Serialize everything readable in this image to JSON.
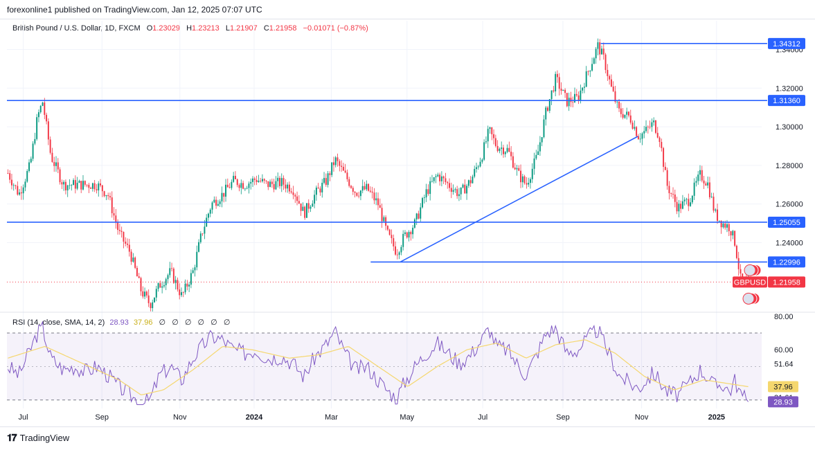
{
  "header": {
    "text": "forexonline1 published on TradingView.com, Jan 12, 2025 07:07 UTC"
  },
  "legend": {
    "symbol": "British Pound / U.S. Dollar, 1D, FXCM",
    "o_label": "O",
    "o_value": "1.23029",
    "h_label": "H",
    "h_value": "1.23213",
    "l_label": "L",
    "l_value": "1.21907",
    "c_label": "C",
    "c_value": "1.21958",
    "change": "−0.01071 (−0.87%)"
  },
  "rsi_legend": {
    "label": "RSI (14, close, SMA, 14, 2)",
    "rsi_value": "28.93",
    "sma_value": "37.96",
    "placeholders": [
      "∅",
      "∅",
      "∅",
      "∅",
      "∅",
      "∅"
    ]
  },
  "footer": {
    "brand": "TradingView",
    "logo_icon": "tradingview-logo-icon"
  },
  "colors": {
    "up": "#089981",
    "down": "#f23645",
    "line": "#2962ff",
    "rsi": "#7e57c2",
    "rsi_ma": "#f5d76e"
  },
  "chart_data": [
    {
      "type": "candlestick",
      "symbol": "GBPUSD",
      "ylim": [
        1.205,
        1.347
      ],
      "yticks": [
        "1.24000",
        "1.26000",
        "1.28000",
        "1.30000",
        "1.32000",
        "1.34000"
      ],
      "xticks": [
        {
          "label": "Jul",
          "t": 0.022
        },
        {
          "label": "Sep",
          "t": 0.128
        },
        {
          "label": "Nov",
          "t": 0.233
        },
        {
          "label": "2024",
          "t": 0.333
        },
        {
          "label": "Mar",
          "t": 0.437
        },
        {
          "label": "May",
          "t": 0.539
        },
        {
          "label": "Jul",
          "t": 0.641
        },
        {
          "label": "Sep",
          "t": 0.749
        },
        {
          "label": "Nov",
          "t": 0.855
        },
        {
          "label": "2025",
          "t": 0.956
        }
      ],
      "price_path": [
        [
          0.0,
          1.276
        ],
        [
          0.015,
          1.265
        ],
        [
          0.03,
          1.28
        ],
        [
          0.04,
          1.305
        ],
        [
          0.047,
          1.313
        ],
        [
          0.058,
          1.285
        ],
        [
          0.075,
          1.27
        ],
        [
          0.09,
          1.27
        ],
        [
          0.105,
          1.27
        ],
        [
          0.12,
          1.27
        ],
        [
          0.135,
          1.265
        ],
        [
          0.15,
          1.245
        ],
        [
          0.165,
          1.235
        ],
        [
          0.18,
          1.215
        ],
        [
          0.192,
          1.208
        ],
        [
          0.205,
          1.218
        ],
        [
          0.22,
          1.225
        ],
        [
          0.235,
          1.212
        ],
        [
          0.25,
          1.225
        ],
        [
          0.262,
          1.245
        ],
        [
          0.275,
          1.26
        ],
        [
          0.29,
          1.265
        ],
        [
          0.305,
          1.272
        ],
        [
          0.32,
          1.27
        ],
        [
          0.335,
          1.273
        ],
        [
          0.35,
          1.27
        ],
        [
          0.37,
          1.271
        ],
        [
          0.385,
          1.268
        ],
        [
          0.4,
          1.255
        ],
        [
          0.415,
          1.265
        ],
        [
          0.43,
          1.272
        ],
        [
          0.442,
          1.283
        ],
        [
          0.455,
          1.275
        ],
        [
          0.47,
          1.266
        ],
        [
          0.485,
          1.268
        ],
        [
          0.5,
          1.26
        ],
        [
          0.512,
          1.245
        ],
        [
          0.525,
          1.235
        ],
        [
          0.535,
          1.243
        ],
        [
          0.55,
          1.25
        ],
        [
          0.565,
          1.266
        ],
        [
          0.58,
          1.275
        ],
        [
          0.595,
          1.27
        ],
        [
          0.61,
          1.265
        ],
        [
          0.625,
          1.272
        ],
        [
          0.64,
          1.285
        ],
        [
          0.65,
          1.298
        ],
        [
          0.66,
          1.29
        ],
        [
          0.675,
          1.288
        ],
        [
          0.69,
          1.275
        ],
        [
          0.7,
          1.27
        ],
        [
          0.715,
          1.285
        ],
        [
          0.727,
          1.308
        ],
        [
          0.74,
          1.325
        ],
        [
          0.755,
          1.313
        ],
        [
          0.77,
          1.315
        ],
        [
          0.785,
          1.33
        ],
        [
          0.797,
          1.342
        ],
        [
          0.805,
          1.335
        ],
        [
          0.815,
          1.32
        ],
        [
          0.825,
          1.308
        ],
        [
          0.84,
          1.305
        ],
        [
          0.852,
          1.295
        ],
        [
          0.862,
          1.298
        ],
        [
          0.872,
          1.302
        ],
        [
          0.88,
          1.295
        ],
        [
          0.89,
          1.27
        ],
        [
          0.905,
          1.258
        ],
        [
          0.92,
          1.262
        ],
        [
          0.935,
          1.275
        ],
        [
          0.945,
          1.271
        ],
        [
          0.955,
          1.255
        ],
        [
          0.965,
          1.25
        ],
        [
          0.975,
          1.248
        ],
        [
          0.982,
          1.24
        ],
        [
          0.99,
          1.22
        ],
        [
          1.0,
          1.2196
        ]
      ],
      "lines": [
        {
          "name": "horizontal-line-top",
          "price": 1.34312,
          "label": "1.34312",
          "from": 0.8,
          "to": 1.0
        },
        {
          "name": "horizontal-line-upper",
          "price": 1.3136,
          "label": "1.31360",
          "from": 0.0,
          "to": 1.0
        },
        {
          "name": "horizontal-line-middle",
          "price": 1.25055,
          "label": "1.25055",
          "from": 0.0,
          "to": 1.0
        },
        {
          "name": "horizontal-line-lower",
          "price": 1.22996,
          "label": "1.22996",
          "from": 0.49,
          "to": 1.0
        }
      ],
      "trendline": {
        "x1": 0.53,
        "y1": 1.23,
        "x2": 0.85,
        "y2": 1.295
      },
      "last_price": {
        "symbol_label": "GBPUSD",
        "value": "1.21958",
        "price": 1.21958
      }
    },
    {
      "type": "line",
      "name": "RSI",
      "ylim": [
        27,
        82
      ],
      "yticks": [
        "80.00",
        "60.00",
        "51.64",
        "31.61"
      ],
      "bands": [
        70,
        30
      ],
      "rsi_path": [
        [
          0.0,
          50
        ],
        [
          0.015,
          45
        ],
        [
          0.03,
          60
        ],
        [
          0.04,
          70
        ],
        [
          0.047,
          73
        ],
        [
          0.058,
          55
        ],
        [
          0.075,
          48
        ],
        [
          0.09,
          50
        ],
        [
          0.105,
          47
        ],
        [
          0.12,
          50
        ],
        [
          0.135,
          45
        ],
        [
          0.15,
          38
        ],
        [
          0.165,
          33
        ],
        [
          0.18,
          28
        ],
        [
          0.192,
          30
        ],
        [
          0.205,
          45
        ],
        [
          0.22,
          50
        ],
        [
          0.235,
          42
        ],
        [
          0.25,
          55
        ],
        [
          0.262,
          62
        ],
        [
          0.275,
          68
        ],
        [
          0.29,
          66
        ],
        [
          0.305,
          60
        ],
        [
          0.32,
          58
        ],
        [
          0.335,
          60
        ],
        [
          0.35,
          55
        ],
        [
          0.37,
          56
        ],
        [
          0.385,
          52
        ],
        [
          0.4,
          44
        ],
        [
          0.415,
          56
        ],
        [
          0.43,
          63
        ],
        [
          0.442,
          71
        ],
        [
          0.455,
          58
        ],
        [
          0.47,
          48
        ],
        [
          0.485,
          50
        ],
        [
          0.5,
          42
        ],
        [
          0.512,
          36
        ],
        [
          0.525,
          31
        ],
        [
          0.535,
          40
        ],
        [
          0.55,
          50
        ],
        [
          0.565,
          58
        ],
        [
          0.58,
          64
        ],
        [
          0.595,
          58
        ],
        [
          0.61,
          52
        ],
        [
          0.625,
          57
        ],
        [
          0.64,
          66
        ],
        [
          0.65,
          73
        ],
        [
          0.66,
          62
        ],
        [
          0.675,
          60
        ],
        [
          0.69,
          50
        ],
        [
          0.7,
          45
        ],
        [
          0.715,
          58
        ],
        [
          0.727,
          70
        ],
        [
          0.74,
          73
        ],
        [
          0.755,
          58
        ],
        [
          0.77,
          60
        ],
        [
          0.785,
          68
        ],
        [
          0.797,
          72
        ],
        [
          0.805,
          64
        ],
        [
          0.815,
          55
        ],
        [
          0.825,
          45
        ],
        [
          0.84,
          40
        ],
        [
          0.852,
          37
        ],
        [
          0.862,
          42
        ],
        [
          0.872,
          46
        ],
        [
          0.88,
          42
        ],
        [
          0.89,
          35
        ],
        [
          0.905,
          33
        ],
        [
          0.92,
          40
        ],
        [
          0.935,
          48
        ],
        [
          0.945,
          44
        ],
        [
          0.955,
          38
        ],
        [
          0.965,
          40
        ],
        [
          0.975,
          35
        ],
        [
          0.982,
          42
        ],
        [
          0.99,
          33
        ],
        [
          1.0,
          28.93
        ]
      ],
      "sma_path": [
        [
          0.0,
          55
        ],
        [
          0.05,
          62
        ],
        [
          0.1,
          52
        ],
        [
          0.15,
          42
        ],
        [
          0.18,
          33
        ],
        [
          0.21,
          36
        ],
        [
          0.25,
          48
        ],
        [
          0.29,
          62
        ],
        [
          0.33,
          60
        ],
        [
          0.38,
          55
        ],
        [
          0.42,
          57
        ],
        [
          0.46,
          62
        ],
        [
          0.5,
          50
        ],
        [
          0.54,
          38
        ],
        [
          0.58,
          50
        ],
        [
          0.62,
          60
        ],
        [
          0.66,
          64
        ],
        [
          0.7,
          55
        ],
        [
          0.74,
          63
        ],
        [
          0.78,
          66
        ],
        [
          0.82,
          58
        ],
        [
          0.86,
          44
        ],
        [
          0.9,
          36
        ],
        [
          0.94,
          42
        ],
        [
          0.97,
          40
        ],
        [
          1.0,
          37.96
        ]
      ],
      "rsi_value": 28.93,
      "rsi_label": "28.93",
      "sma_value": 37.96,
      "sma_label": "37.96"
    }
  ]
}
